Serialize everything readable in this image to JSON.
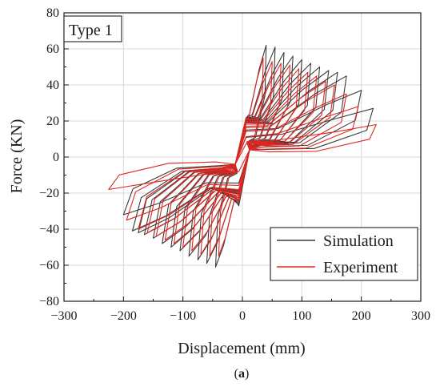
{
  "chart_data": {
    "type": "line",
    "title": "",
    "panel_label": "Type 1",
    "caption": {
      "open": "(",
      "letter": "a",
      "close": ")"
    },
    "xlabel": "Displacement (mm)",
    "ylabel": "Force (KN)",
    "xlim": [
      -300,
      300
    ],
    "ylim": [
      -80,
      80
    ],
    "xticks": [
      -300,
      -200,
      -100,
      0,
      100,
      200,
      300
    ],
    "yticks": [
      -80,
      -60,
      -40,
      -20,
      0,
      20,
      40,
      60,
      80
    ],
    "grid": true,
    "legend_position": "bottom-right",
    "series": [
      {
        "name": "Simulation",
        "color": "#3a3a3a",
        "cycles": [
          {
            "dpos": 40,
            "fpos": 62,
            "dneg": -45,
            "fneg": -61
          },
          {
            "dpos": 55,
            "fpos": 61,
            "dneg": -60,
            "fneg": -59
          },
          {
            "dpos": 70,
            "fpos": 58,
            "dneg": -75,
            "fneg": -57
          },
          {
            "dpos": 85,
            "fpos": 56,
            "dneg": -90,
            "fneg": -55
          },
          {
            "dpos": 100,
            "fpos": 54,
            "dneg": -105,
            "fneg": -52
          },
          {
            "dpos": 115,
            "fpos": 52,
            "dneg": -120,
            "fneg": -50
          },
          {
            "dpos": 130,
            "fpos": 50,
            "dneg": -135,
            "fneg": -48
          },
          {
            "dpos": 145,
            "fpos": 48,
            "dneg": -150,
            "fneg": -45
          },
          {
            "dpos": 160,
            "fpos": 47,
            "dneg": -165,
            "fneg": -43
          },
          {
            "dpos": 175,
            "fpos": 45,
            "dneg": -175,
            "fneg": -42
          },
          {
            "dpos": 200,
            "fpos": 37,
            "dneg": -185,
            "fneg": -41
          },
          {
            "dpos": 220,
            "fpos": 27,
            "dneg": -200,
            "fneg": -32
          }
        ]
      },
      {
        "name": "Experiment",
        "color": "#e0251f",
        "cycles": [
          {
            "dpos": 35,
            "fpos": 55,
            "dneg": -40,
            "fneg": -55
          },
          {
            "dpos": 50,
            "fpos": 53,
            "dneg": -55,
            "fneg": -55
          },
          {
            "dpos": 65,
            "fpos": 52,
            "dneg": -70,
            "fneg": -54
          },
          {
            "dpos": 80,
            "fpos": 51,
            "dneg": -85,
            "fneg": -52
          },
          {
            "dpos": 95,
            "fpos": 49,
            "dneg": -100,
            "fneg": -50
          },
          {
            "dpos": 110,
            "fpos": 47,
            "dneg": -115,
            "fneg": -48
          },
          {
            "dpos": 125,
            "fpos": 45,
            "dneg": -130,
            "fneg": -46
          },
          {
            "dpos": 140,
            "fpos": 42,
            "dneg": -145,
            "fneg": -44
          },
          {
            "dpos": 155,
            "fpos": 40,
            "dneg": -160,
            "fneg": -42
          },
          {
            "dpos": 175,
            "fpos": 35,
            "dneg": -175,
            "fneg": -40
          },
          {
            "dpos": 195,
            "fpos": 28,
            "dneg": -195,
            "fneg": -35
          },
          {
            "dpos": 225,
            "fpos": 18,
            "dneg": -225,
            "fneg": -18
          }
        ]
      }
    ]
  }
}
